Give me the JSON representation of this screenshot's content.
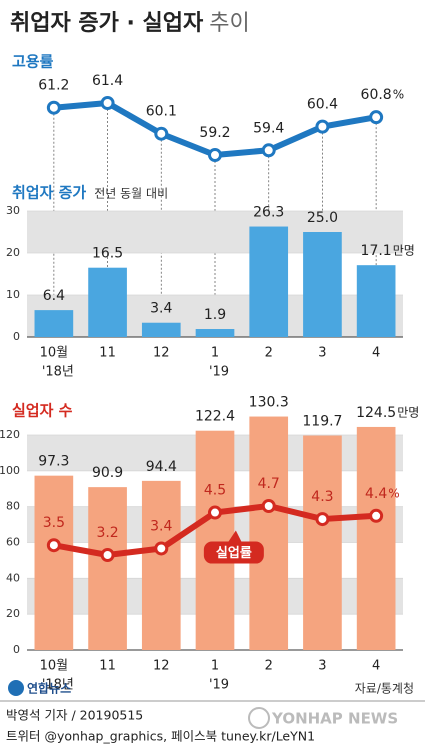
{
  "title": "취업자 증가 · 실업자",
  "title_suffix": "추이",
  "chart_data": [
    {
      "type": "line",
      "title": "고용률",
      "categories": [
        "10월",
        "11",
        "12",
        "1",
        "2",
        "3",
        "4"
      ],
      "values": [
        61.2,
        61.4,
        60.1,
        59.2,
        59.4,
        60.4,
        60.8
      ],
      "value_labels": [
        "61.2",
        "61.4",
        "60.1",
        "59.2",
        "59.4",
        "60.4",
        "60.8"
      ],
      "unit": "%",
      "color": "#1f78c1"
    },
    {
      "type": "bar",
      "title": "취업자 증가",
      "subtitle": "전년 동월 대비",
      "categories": [
        "10월",
        "11",
        "12",
        "1",
        "2",
        "3",
        "4"
      ],
      "category_years": [
        "'18년",
        null,
        null,
        "'19",
        null,
        null,
        null
      ],
      "values": [
        6.4,
        16.5,
        3.4,
        1.9,
        26.3,
        25.0,
        17.1
      ],
      "value_labels": [
        "6.4",
        "16.5",
        "3.4",
        "1.9",
        "26.3",
        "25.0",
        "17.1"
      ],
      "unit": "만명",
      "color": "#4aa6e0",
      "ylim": [
        0,
        30
      ],
      "yticks": [
        0,
        10,
        20,
        30
      ],
      "grid": true
    },
    {
      "type": "bar",
      "title": "실업자 수",
      "categories": [
        "10월",
        "11",
        "12",
        "1",
        "2",
        "3",
        "4"
      ],
      "category_years": [
        "'18년",
        null,
        null,
        "'19",
        null,
        null,
        null
      ],
      "values": [
        97.3,
        90.9,
        94.4,
        122.4,
        130.3,
        119.7,
        124.5
      ],
      "value_labels": [
        "97.3",
        "90.9",
        "94.4",
        "122.4",
        "130.3",
        "119.7",
        "124.5"
      ],
      "unit": "만명",
      "color": "#f5a47f",
      "ylim": [
        0,
        132
      ],
      "yticks": [
        0,
        20,
        40,
        60,
        80,
        100,
        120
      ],
      "grid": true
    },
    {
      "type": "line",
      "title": "실업률",
      "categories": [
        "10월",
        "11",
        "12",
        "1",
        "2",
        "3",
        "4"
      ],
      "values": [
        3.5,
        3.2,
        3.4,
        4.5,
        4.7,
        4.3,
        4.4
      ],
      "value_labels": [
        "3.5",
        "3.2",
        "3.4",
        "4.5",
        "4.7",
        "4.3",
        "4.4"
      ],
      "unit": "%",
      "color": "#d42a20"
    }
  ],
  "source": "자료/통계청",
  "logo": "연합뉴스",
  "watermark": "YONHAP NEWS",
  "byline": "박영석 기자 / 20190515",
  "social": "트위터 @yonhap_graphics, 페이스북 tuney.kr/LeYN1"
}
